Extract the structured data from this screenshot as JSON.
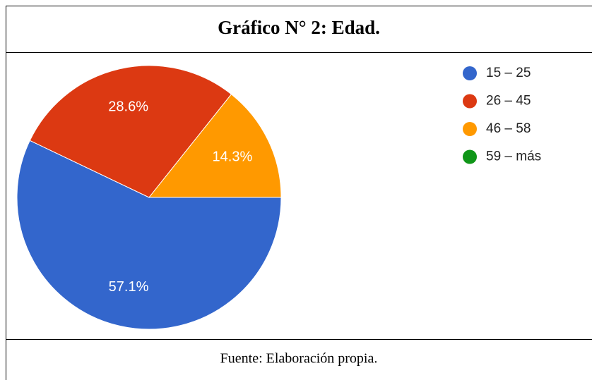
{
  "chart_data": {
    "type": "pie",
    "title": "Gráfico N° 2: Edad.",
    "source": "Fuente: Elaboración propia.",
    "categories": [
      "15 – 25",
      "26 – 45",
      "46 – 58",
      "59 – más"
    ],
    "values": [
      57.1,
      28.6,
      14.3,
      0
    ],
    "value_labels": [
      "57.1%",
      "28.6%",
      "14.3%",
      null
    ],
    "colors": [
      "#3366cc",
      "#dc3912",
      "#ff9900",
      "#109618"
    ],
    "legend": "right"
  }
}
